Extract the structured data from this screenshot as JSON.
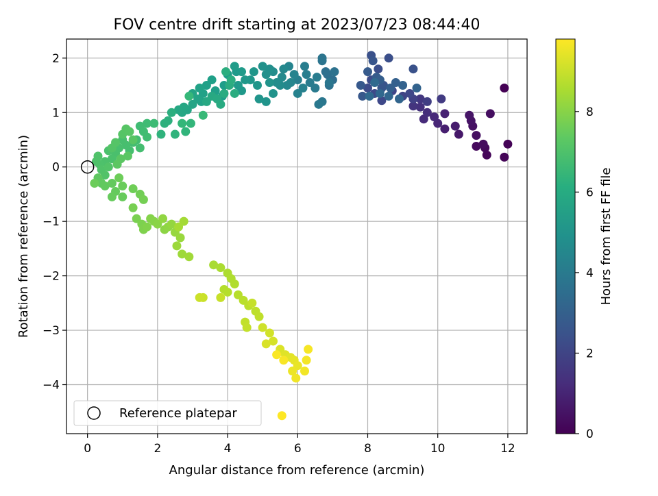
{
  "chart_data": {
    "type": "scatter",
    "title": "FOV centre drift starting at 2023/07/23 08:44:40",
    "xlabel": "Angular distance from reference (arcmin)",
    "ylabel": "Rotation from reference (arcmin)",
    "xlim": [
      -0.6,
      12.55
    ],
    "ylim": [
      -4.9,
      2.35
    ],
    "xticks": [
      0,
      2,
      4,
      6,
      8,
      10,
      12
    ],
    "yticks": [
      -4,
      -3,
      -2,
      -1,
      0,
      1,
      2
    ],
    "grid": true,
    "colormap": "viridis",
    "colorbar": {
      "label": "Hours from first FF file",
      "range": [
        0,
        9.8
      ],
      "ticks": [
        0,
        2,
        4,
        6,
        8
      ]
    },
    "legend": {
      "position": "lower-left",
      "entries": [
        {
          "label": "Reference platepar",
          "marker": "open-circle"
        }
      ]
    },
    "reference_point": {
      "x": 0,
      "y": 0
    },
    "series": [
      {
        "points": [
          [
            11.9,
            1.45,
            0.0
          ],
          [
            12.0,
            0.42,
            0.05
          ],
          [
            11.9,
            0.18,
            0.1
          ],
          [
            11.4,
            0.22,
            0.15
          ],
          [
            11.35,
            0.35,
            0.2
          ],
          [
            11.1,
            0.38,
            0.25
          ],
          [
            11.3,
            0.42,
            0.3
          ],
          [
            11.5,
            0.98,
            0.35
          ],
          [
            11.1,
            0.58,
            0.4
          ],
          [
            11.0,
            0.75,
            0.45
          ],
          [
            10.95,
            0.85,
            0.5
          ],
          [
            10.9,
            0.95,
            0.55
          ],
          [
            10.6,
            0.6,
            0.65
          ],
          [
            10.5,
            0.75,
            0.75
          ],
          [
            10.2,
            0.7,
            0.85
          ],
          [
            10.2,
            0.98,
            0.95
          ],
          [
            10.0,
            0.8,
            1.05
          ],
          [
            9.9,
            0.92,
            1.15
          ],
          [
            9.6,
            0.88,
            1.2
          ],
          [
            9.7,
            1.0,
            1.3
          ],
          [
            9.5,
            1.1,
            1.4
          ],
          [
            9.3,
            1.12,
            1.5
          ],
          [
            9.5,
            1.25,
            1.6
          ],
          [
            10.1,
            1.25,
            1.7
          ],
          [
            9.7,
            1.2,
            1.8
          ],
          [
            9.3,
            1.25,
            1.9
          ],
          [
            9.0,
            1.3,
            2.0
          ],
          [
            8.7,
            1.4,
            2.05
          ],
          [
            9.2,
            1.35,
            2.1
          ],
          [
            8.4,
            1.22,
            2.15
          ],
          [
            8.2,
            1.35,
            2.2
          ],
          [
            8.0,
            1.45,
            2.25
          ],
          [
            8.1,
            1.6,
            2.3
          ],
          [
            8.3,
            1.8,
            2.35
          ],
          [
            8.6,
            2.0,
            2.4
          ],
          [
            8.1,
            2.05,
            2.45
          ],
          [
            9.3,
            1.8,
            2.5
          ],
          [
            8.45,
            1.5,
            2.55
          ],
          [
            8.15,
            1.95,
            2.6
          ],
          [
            8.4,
            1.45,
            2.65
          ],
          [
            7.85,
            1.3,
            2.7
          ],
          [
            7.8,
            1.5,
            2.75
          ],
          [
            8.0,
            1.75,
            2.8
          ],
          [
            8.25,
            1.65,
            2.85
          ],
          [
            8.35,
            1.6,
            2.9
          ],
          [
            8.65,
            1.45,
            2.95
          ],
          [
            8.8,
            1.55,
            3.0
          ],
          [
            9.0,
            1.5,
            3.05
          ],
          [
            9.4,
            1.45,
            3.1
          ],
          [
            8.9,
            1.25,
            3.15
          ],
          [
            8.6,
            1.3,
            3.2
          ],
          [
            8.35,
            1.35,
            3.25
          ],
          [
            8.05,
            1.3,
            3.3
          ],
          [
            8.2,
            1.55,
            3.35
          ],
          [
            7.0,
            1.6,
            3.5
          ],
          [
            6.85,
            1.7,
            3.55
          ],
          [
            6.8,
            1.75,
            3.6
          ],
          [
            6.9,
            1.5,
            3.65
          ],
          [
            7.05,
            1.75,
            3.7
          ],
          [
            6.7,
            1.95,
            3.75
          ],
          [
            6.7,
            2.0,
            3.8
          ],
          [
            6.9,
            1.55,
            3.85
          ],
          [
            6.7,
            1.2,
            3.9
          ],
          [
            6.6,
            1.15,
            3.95
          ],
          [
            6.5,
            1.45,
            4.0
          ],
          [
            6.35,
            1.55,
            4.05
          ],
          [
            6.55,
            1.65,
            4.1
          ],
          [
            6.2,
            1.85,
            4.15
          ],
          [
            6.25,
            1.7,
            4.2
          ],
          [
            6.0,
            1.6,
            4.25
          ],
          [
            6.15,
            1.45,
            4.3
          ],
          [
            6.0,
            1.35,
            4.35
          ],
          [
            5.9,
            1.7,
            4.4
          ],
          [
            5.75,
            1.85,
            4.45
          ],
          [
            5.8,
            1.55,
            4.5
          ],
          [
            5.7,
            1.5,
            4.55
          ],
          [
            5.6,
            1.8,
            4.6
          ],
          [
            5.55,
            1.65,
            4.65
          ],
          [
            5.5,
            1.5,
            4.7
          ],
          [
            5.3,
            1.75,
            4.75
          ],
          [
            5.4,
            1.55,
            4.8
          ],
          [
            5.2,
            1.8,
            4.85
          ],
          [
            5.1,
            1.7,
            4.9
          ],
          [
            5.0,
            1.85,
            4.95
          ],
          [
            5.3,
            1.35,
            5.0
          ],
          [
            5.2,
            1.55,
            5.03
          ],
          [
            5.1,
            1.2,
            5.06
          ],
          [
            4.9,
            1.25,
            5.09
          ],
          [
            4.85,
            1.5,
            5.12
          ],
          [
            4.75,
            1.75,
            5.15
          ],
          [
            4.65,
            1.6,
            5.18
          ],
          [
            4.5,
            1.6,
            5.21
          ],
          [
            4.4,
            1.4,
            5.24
          ],
          [
            4.3,
            1.5,
            5.27
          ],
          [
            4.25,
            1.75,
            5.3
          ],
          [
            4.4,
            1.75,
            5.33
          ],
          [
            4.2,
            1.85,
            5.36
          ],
          [
            4.0,
            1.7,
            5.39
          ],
          [
            3.9,
            1.5,
            5.42
          ],
          [
            3.85,
            1.3,
            5.45
          ],
          [
            3.65,
            1.4,
            5.48
          ],
          [
            3.55,
            1.6,
            5.51
          ],
          [
            3.4,
            1.5,
            5.54
          ],
          [
            3.3,
            1.35,
            5.57
          ],
          [
            3.2,
            1.45,
            5.6
          ],
          [
            3.25,
            1.2,
            5.63
          ],
          [
            3.15,
            1.25,
            5.66
          ],
          [
            3.0,
            1.35,
            5.69
          ],
          [
            3.0,
            1.15,
            5.72
          ],
          [
            2.85,
            1.05,
            5.75
          ],
          [
            2.75,
            1.1,
            5.78
          ],
          [
            2.7,
            1.0,
            5.81
          ],
          [
            2.6,
            1.05,
            5.84
          ],
          [
            3.4,
            1.2,
            5.87
          ],
          [
            3.55,
            1.3,
            5.9
          ],
          [
            3.7,
            1.25,
            5.93
          ],
          [
            3.8,
            1.15,
            5.96
          ],
          [
            3.9,
            1.35,
            5.99
          ],
          [
            4.05,
            1.5,
            6.02
          ],
          [
            4.2,
            1.35,
            6.05
          ],
          [
            4.1,
            1.6,
            6.08
          ],
          [
            3.95,
            1.75,
            6.11
          ],
          [
            2.4,
            1.0,
            6.15
          ],
          [
            2.3,
            0.85,
            6.2
          ],
          [
            2.2,
            0.8,
            6.25
          ],
          [
            2.1,
            0.6,
            6.3
          ],
          [
            2.5,
            0.6,
            6.35
          ],
          [
            2.8,
            0.65,
            6.4
          ],
          [
            2.95,
            0.8,
            6.45
          ],
          [
            2.7,
            0.8,
            6.5
          ],
          [
            2.9,
            1.3,
            6.55
          ],
          [
            3.3,
            0.95,
            6.6
          ],
          [
            1.9,
            0.8,
            6.7
          ],
          [
            1.7,
            0.8,
            6.72
          ],
          [
            1.5,
            0.75,
            6.74
          ],
          [
            1.6,
            0.65,
            6.76
          ],
          [
            1.7,
            0.55,
            6.78
          ],
          [
            1.4,
            0.5,
            6.8
          ],
          [
            1.3,
            0.45,
            6.82
          ],
          [
            1.5,
            0.35,
            6.84
          ],
          [
            1.2,
            0.3,
            6.86
          ],
          [
            1.1,
            0.4,
            6.88
          ],
          [
            1.0,
            0.5,
            6.9
          ],
          [
            0.9,
            0.35,
            6.92
          ],
          [
            0.8,
            0.25,
            6.94
          ],
          [
            0.7,
            0.15,
            6.96
          ],
          [
            0.6,
            0.3,
            6.98
          ],
          [
            0.5,
            0.1,
            7.0
          ],
          [
            0.35,
            0.05,
            7.02
          ],
          [
            0.25,
            0.1,
            7.04
          ],
          [
            0.3,
            0.2,
            7.06
          ],
          [
            0.4,
            -0.05,
            7.08
          ],
          [
            0.5,
            -0.15,
            7.1
          ],
          [
            0.6,
            0.0,
            7.12
          ],
          [
            0.7,
            0.35,
            7.14
          ],
          [
            0.8,
            0.45,
            7.16
          ],
          [
            1.0,
            0.6,
            7.18
          ],
          [
            1.1,
            0.7,
            7.2
          ],
          [
            1.2,
            0.65,
            7.22
          ],
          [
            1.3,
            0.5,
            7.24
          ],
          [
            1.15,
            0.2,
            7.26
          ],
          [
            0.95,
            0.15,
            7.28
          ],
          [
            0.85,
            0.05,
            7.3
          ],
          [
            0.3,
            -0.2,
            7.35
          ],
          [
            0.4,
            -0.3,
            7.38
          ],
          [
            0.5,
            -0.35,
            7.41
          ],
          [
            0.7,
            -0.3,
            7.44
          ],
          [
            0.8,
            -0.45,
            7.47
          ],
          [
            0.7,
            -0.55,
            7.5
          ],
          [
            1.0,
            -0.55,
            7.53
          ],
          [
            1.0,
            -0.35,
            7.56
          ],
          [
            0.2,
            -0.3,
            7.59
          ],
          [
            0.9,
            -0.2,
            7.62
          ],
          [
            1.3,
            -0.4,
            7.66
          ],
          [
            1.5,
            -0.5,
            7.7
          ],
          [
            1.6,
            -0.6,
            7.74
          ],
          [
            1.3,
            -0.75,
            7.78
          ],
          [
            1.4,
            -0.95,
            7.82
          ],
          [
            1.55,
            -1.05,
            7.86
          ],
          [
            1.6,
            -1.15,
            7.9
          ],
          [
            1.7,
            -1.1,
            7.94
          ],
          [
            1.8,
            -0.95,
            7.98
          ],
          [
            1.9,
            -1.0,
            8.02
          ],
          [
            2.0,
            -1.05,
            8.06
          ],
          [
            2.2,
            -1.15,
            8.1
          ],
          [
            2.3,
            -1.1,
            8.14
          ],
          [
            2.15,
            -0.95,
            8.18
          ],
          [
            2.4,
            -1.05,
            8.22
          ],
          [
            2.5,
            -1.2,
            8.26
          ],
          [
            2.65,
            -1.3,
            8.3
          ],
          [
            2.55,
            -1.45,
            8.34
          ],
          [
            2.7,
            -1.6,
            8.38
          ],
          [
            2.9,
            -1.65,
            8.42
          ],
          [
            2.75,
            -1.0,
            8.46
          ],
          [
            2.6,
            -1.1,
            8.5
          ],
          [
            3.6,
            -1.8,
            8.55
          ],
          [
            3.8,
            -1.85,
            8.58
          ],
          [
            4.0,
            -1.95,
            8.61
          ],
          [
            4.1,
            -2.05,
            8.64
          ],
          [
            4.2,
            -2.15,
            8.67
          ],
          [
            3.9,
            -2.25,
            8.7
          ],
          [
            4.0,
            -2.3,
            8.73
          ],
          [
            4.3,
            -2.35,
            8.76
          ],
          [
            4.45,
            -2.45,
            8.79
          ],
          [
            4.6,
            -2.55,
            8.82
          ],
          [
            4.8,
            -2.65,
            8.85
          ],
          [
            4.9,
            -2.75,
            8.88
          ],
          [
            4.5,
            -2.85,
            8.91
          ],
          [
            4.55,
            -2.95,
            8.94
          ],
          [
            4.7,
            -2.5,
            8.97
          ],
          [
            3.8,
            -2.4,
            9.0
          ],
          [
            3.3,
            -2.4,
            9.03
          ],
          [
            3.2,
            -2.4,
            9.06
          ],
          [
            5.0,
            -2.95,
            9.1
          ],
          [
            5.2,
            -3.05,
            9.15
          ],
          [
            5.3,
            -3.2,
            9.2
          ],
          [
            5.1,
            -3.25,
            9.25
          ],
          [
            5.5,
            -3.35,
            9.3
          ],
          [
            5.65,
            -3.45,
            9.35
          ],
          [
            5.8,
            -3.5,
            9.4
          ],
          [
            5.9,
            -3.55,
            9.45
          ],
          [
            6.0,
            -3.65,
            9.5
          ],
          [
            5.85,
            -3.75,
            9.55
          ],
          [
            5.95,
            -3.88,
            9.6
          ],
          [
            6.2,
            -3.75,
            9.63
          ],
          [
            6.25,
            -3.55,
            9.66
          ],
          [
            6.3,
            -3.35,
            9.69
          ],
          [
            5.6,
            -3.55,
            9.72
          ],
          [
            5.4,
            -3.45,
            9.75
          ],
          [
            5.55,
            -4.57,
            9.8
          ]
        ]
      }
    ]
  }
}
